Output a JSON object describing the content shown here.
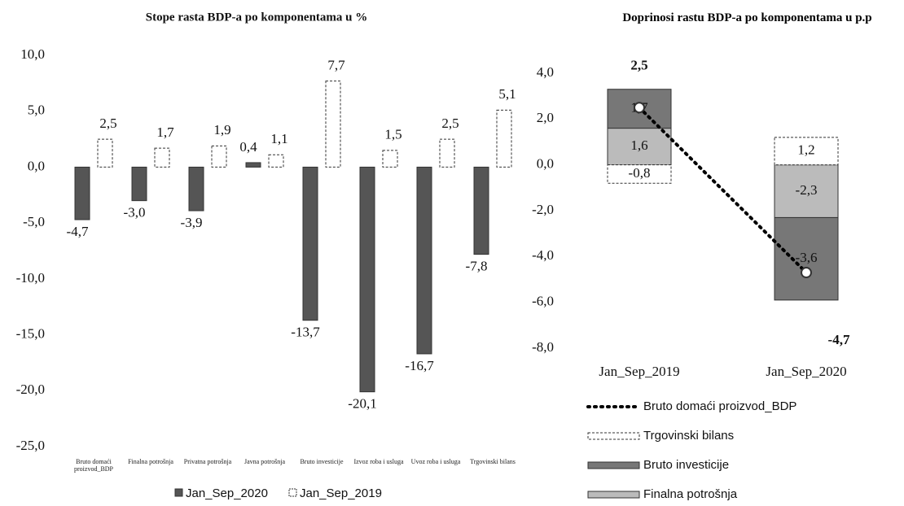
{
  "chart_data": [
    {
      "type": "bar",
      "title": "Stope rasta BDP-a po komponentama u %",
      "categories": [
        "Bruto domaći proizvod_BDP",
        "Finalna potrošnja",
        "Privatna potrošnja",
        "Javna potrošnja",
        "Bruto investicije",
        "Izvoz roba i usluga",
        "Uvoz roba i usluga",
        "Trgovinski bilans"
      ],
      "series": [
        {
          "name": "Jan_Sep_2020",
          "color": "#555555",
          "values": [
            -4.7,
            -3.0,
            -3.9,
            0.4,
            -13.7,
            -20.1,
            -16.7,
            -7.8
          ],
          "value_labels": [
            "-4,7",
            "-3,0",
            "-3,9",
            "0,4",
            "-13,7",
            "-20,1",
            "-16,7",
            "-7,8"
          ]
        },
        {
          "name": "Jan_Sep_2019",
          "color": "#ffffff",
          "values": [
            2.5,
            1.7,
            1.9,
            1.1,
            7.7,
            1.5,
            2.5,
            5.1
          ],
          "value_labels": [
            "2,5",
            "1,7",
            "1,9",
            "1,1",
            "7,7",
            "1,5",
            "2,5",
            "5,1"
          ]
        }
      ],
      "ylim": [
        -25,
        10
      ],
      "yticks": [
        {
          "value": 10,
          "label": "10,0"
        },
        {
          "value": 5,
          "label": "5,0"
        },
        {
          "value": 0,
          "label": "0,0"
        },
        {
          "value": -5,
          "label": "-5,0"
        },
        {
          "value": -10,
          "label": "-10,0"
        },
        {
          "value": -15,
          "label": "-15,0"
        },
        {
          "value": -20,
          "label": "-20,0"
        },
        {
          "value": -25,
          "label": "-25,0"
        }
      ],
      "legend": "bottom"
    },
    {
      "type": "stacked_bar",
      "title": "Doprinosi rastu BDP-a po komponentama u p.p",
      "categories": [
        "Jan_Sep_2019",
        "Jan_Sep_2020"
      ],
      "series": [
        {
          "name": "Finalna potrošnja",
          "color": "#bbbbbb",
          "values": [
            1.6,
            -2.3
          ],
          "value_labels": [
            "1,6",
            "-2,3"
          ]
        },
        {
          "name": "Bruto investicije",
          "color": "#777777",
          "values": [
            1.7,
            -3.6
          ],
          "value_labels": [
            "1,7",
            "-3,6"
          ]
        },
        {
          "name": "Trgovinski bilans",
          "color": "#ffffff",
          "values": [
            -0.8,
            1.2
          ],
          "value_labels": [
            "-0,8",
            "1,2"
          ]
        },
        {
          "name": "Bruto domaći proizvod_BDP",
          "type": "line",
          "color": "#000000",
          "values": [
            2.5,
            -4.7
          ],
          "value_labels": [
            "2,5",
            "-4,7"
          ]
        }
      ],
      "ylim": [
        -8,
        4
      ],
      "yticks": [
        {
          "value": 4,
          "label": "4,0"
        },
        {
          "value": 2,
          "label": "2,0"
        },
        {
          "value": 0,
          "label": "0,0"
        },
        {
          "value": -2,
          "label": "-2,0"
        },
        {
          "value": -4,
          "label": "-4,0"
        },
        {
          "value": -6,
          "label": "-6,0"
        },
        {
          "value": -8,
          "label": "-8,0"
        }
      ],
      "legend": "bottom-left"
    }
  ]
}
